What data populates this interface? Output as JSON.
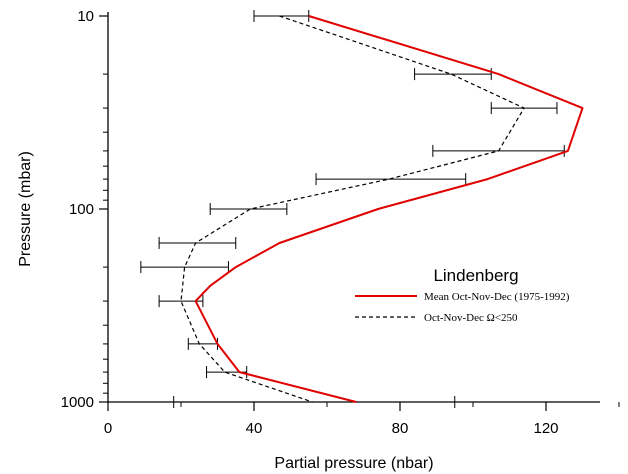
{
  "chart_data": {
    "type": "line",
    "title": "",
    "xlabel": "Partial pressure (nbar)",
    "ylabel": "Pressure (mbar)",
    "xlim": [
      0,
      140
    ],
    "ylim": [
      1000,
      10
    ],
    "yscale": "log",
    "xticks": [
      0,
      40,
      80,
      120
    ],
    "yticks": [
      10,
      100,
      1000
    ],
    "grid": false,
    "legend": {
      "title": "Lindenberg",
      "position": "right",
      "entries": [
        {
          "label": "Mean Oct-Nov-Dec (1975-1992)",
          "color": "#e00000",
          "style": "solid"
        },
        {
          "label": "Oct-Nov-Dec  Ω<250",
          "color": "#000000",
          "style": "dashed"
        }
      ]
    },
    "series": [
      {
        "name": "Mean Oct-Nov-Dec (1975-1992)",
        "color": "#e00000",
        "points": [
          {
            "x": 55,
            "y": 10
          },
          {
            "x": 107,
            "y": 20
          },
          {
            "x": 130,
            "y": 30
          },
          {
            "x": 126,
            "y": 50
          },
          {
            "x": 104,
            "y": 70
          },
          {
            "x": 74,
            "y": 100
          },
          {
            "x": 47,
            "y": 150
          },
          {
            "x": 35,
            "y": 200
          },
          {
            "x": 28,
            "y": 250
          },
          {
            "x": 24,
            "y": 300
          },
          {
            "x": 30,
            "y": 500
          },
          {
            "x": 36,
            "y": 700
          },
          {
            "x": 68,
            "y": 1000
          }
        ]
      },
      {
        "name": "Oct-Nov-Dec  Ω<250",
        "color": "#000000",
        "dashed": true,
        "points": [
          {
            "x": 47,
            "y": 10
          },
          {
            "x": 94,
            "y": 20
          },
          {
            "x": 114,
            "y": 30
          },
          {
            "x": 107,
            "y": 50
          },
          {
            "x": 77,
            "y": 70
          },
          {
            "x": 39,
            "y": 100
          },
          {
            "x": 24,
            "y": 150
          },
          {
            "x": 21,
            "y": 200
          },
          {
            "x": 20,
            "y": 300
          },
          {
            "x": 25,
            "y": 500
          },
          {
            "x": 32,
            "y": 700
          },
          {
            "x": 56,
            "y": 1000
          }
        ],
        "error_bars": [
          {
            "y": 10,
            "xmin": 40,
            "xmax": 55
          },
          {
            "y": 20,
            "xmin": 84,
            "xmax": 105
          },
          {
            "y": 30,
            "xmin": 105,
            "xmax": 123
          },
          {
            "y": 50,
            "xmin": 89,
            "xmax": 125
          },
          {
            "y": 70,
            "xmin": 57,
            "xmax": 98
          },
          {
            "y": 100,
            "xmin": 28,
            "xmax": 49
          },
          {
            "y": 150,
            "xmin": 14,
            "xmax": 35
          },
          {
            "y": 200,
            "xmin": 9,
            "xmax": 33
          },
          {
            "y": 300,
            "xmin": 14,
            "xmax": 26
          },
          {
            "y": 500,
            "xmin": 22,
            "xmax": 30
          },
          {
            "y": 700,
            "xmin": 27,
            "xmax": 38
          },
          {
            "y": 1000,
            "xmin": 18,
            "xmax": 95
          }
        ]
      }
    ]
  }
}
